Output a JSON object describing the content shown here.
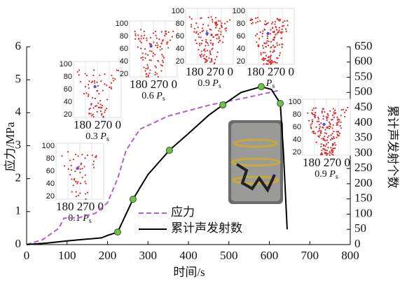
{
  "chart_data": {
    "type": "line",
    "x_label": "时间/s",
    "y_label": "应力/MPa",
    "y2_label": "累计声发射个数",
    "xlim": [
      0,
      800
    ],
    "xticks": [
      0,
      100,
      200,
      300,
      400,
      500,
      600,
      700,
      800
    ],
    "ylim": [
      0,
      6
    ],
    "yticks": [
      0,
      1,
      2,
      3,
      4,
      5,
      6
    ],
    "y2lim": [
      0,
      650
    ],
    "y2ticks": [
      0,
      50,
      100,
      150,
      200,
      250,
      300,
      350,
      400,
      450,
      500,
      550,
      600,
      650
    ],
    "series": [
      {
        "name": "应力",
        "color": "#b061c4",
        "dash": true,
        "axis": "y",
        "x": [
          0,
          40,
          80,
          92,
          130,
          170,
          200,
          225,
          246,
          280,
          350,
          454,
          540,
          625
        ],
        "values": [
          0,
          0.15,
          0.5,
          0.8,
          0.82,
          0.95,
          1.27,
          2.0,
          2.86,
          3.5,
          3.9,
          4.24,
          4.45,
          4.68
        ]
      },
      {
        "name": "累计声发射数",
        "color": "#000000",
        "dash": false,
        "axis": "y2",
        "x": [
          0,
          50,
          100,
          150,
          185,
          200,
          225,
          263,
          300,
          353,
          400,
          450,
          485,
          530,
          580,
          605,
          627,
          635,
          644
        ],
        "values": [
          0,
          5,
          12,
          18,
          22,
          30,
          41,
          149,
          230,
          310,
          365,
          425,
          459,
          500,
          519,
          510,
          464,
          300,
          50
        ]
      }
    ],
    "points": {
      "color": "#6cc24a",
      "axis": "y2",
      "x": [
        225,
        263,
        353,
        485,
        580,
        627
      ],
      "values": [
        41,
        149,
        310,
        459,
        519,
        464
      ]
    },
    "inset_ticks": [
      100,
      80,
      60,
      40,
      20
    ],
    "inset_base": "180 270 0",
    "insets": [
      {
        "coef": "0.1",
        "var": "P",
        "sub": "s"
      },
      {
        "coef": "0.3",
        "var": "P",
        "sub": "s"
      },
      {
        "coef": "0.6",
        "var": "P",
        "sub": "s"
      },
      {
        "coef": "0.9",
        "var": "P",
        "sub": "s"
      },
      {
        "var": "P",
        "sub": "s"
      },
      {
        "coef": "0.9",
        "var": "P",
        "sub": "s"
      }
    ]
  }
}
